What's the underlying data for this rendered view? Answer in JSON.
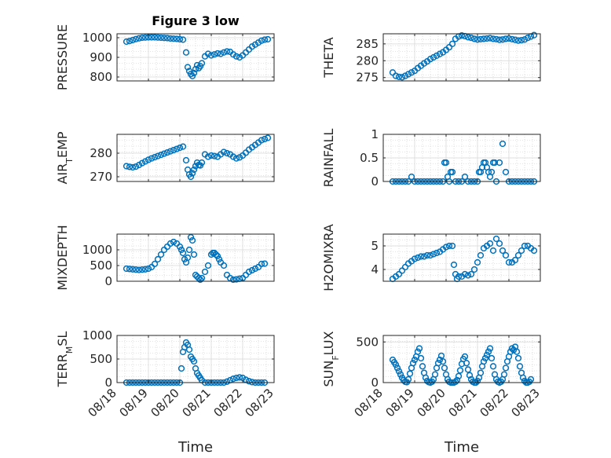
{
  "chart_data": [
    {
      "type": "scatter",
      "title": "Figure 3 low",
      "ylabel": "PRESSURE",
      "xlabel": "",
      "xlim": [
        0,
        5
      ],
      "ylim": [
        780,
        1020
      ],
      "yticks": [
        800,
        900,
        1000
      ],
      "yticklabels": [
        "800",
        "900",
        "1000"
      ],
      "x": [
        0.3,
        0.4,
        0.5,
        0.6,
        0.7,
        0.8,
        0.9,
        1.0,
        1.1,
        1.2,
        1.3,
        1.4,
        1.5,
        1.6,
        1.7,
        1.8,
        1.9,
        2.0,
        2.1,
        2.2,
        2.25,
        2.3,
        2.35,
        2.4,
        2.45,
        2.5,
        2.55,
        2.6,
        2.65,
        2.7,
        2.8,
        2.9,
        3.0,
        3.1,
        3.2,
        3.3,
        3.4,
        3.5,
        3.6,
        3.7,
        3.8,
        3.9,
        4.0,
        4.1,
        4.2,
        4.3,
        4.4,
        4.5,
        4.6,
        4.7,
        4.8
      ],
      "y": [
        980,
        983,
        988,
        993,
        997,
        1000,
        1001,
        1002,
        1002,
        1002,
        1001,
        1000,
        999,
        998,
        996,
        995,
        994,
        992,
        990,
        925,
        850,
        830,
        815,
        805,
        820,
        840,
        860,
        845,
        855,
        870,
        905,
        918,
        910,
        915,
        920,
        918,
        925,
        930,
        928,
        915,
        905,
        900,
        910,
        925,
        940,
        955,
        965,
        975,
        985,
        990,
        992
      ],
      "series_color": "#0072BD"
    },
    {
      "type": "scatter",
      "title": "",
      "ylabel": "THETA",
      "xlabel": "",
      "xlim": [
        0,
        5
      ],
      "ylim": [
        274,
        288
      ],
      "yticks": [
        275,
        280,
        285
      ],
      "yticklabels": [
        "275",
        "280",
        "285"
      ],
      "x": [
        0.3,
        0.4,
        0.5,
        0.6,
        0.7,
        0.8,
        0.9,
        1.0,
        1.1,
        1.2,
        1.3,
        1.4,
        1.5,
        1.6,
        1.7,
        1.8,
        1.9,
        2.0,
        2.1,
        2.2,
        2.3,
        2.4,
        2.5,
        2.6,
        2.7,
        2.8,
        2.9,
        3.0,
        3.1,
        3.2,
        3.3,
        3.4,
        3.5,
        3.6,
        3.7,
        3.8,
        3.9,
        4.0,
        4.1,
        4.2,
        4.3,
        4.4,
        4.5,
        4.6,
        4.7,
        4.8
      ],
      "y": [
        276.5,
        275.5,
        275.2,
        275.1,
        275.5,
        276,
        276.5,
        277,
        277.8,
        278.5,
        279.2,
        279.8,
        280.5,
        281,
        281.5,
        282,
        282.5,
        283.2,
        284,
        285,
        286.5,
        287.2,
        287.5,
        287.3,
        287,
        286.8,
        286.5,
        286.3,
        286.4,
        286.5,
        286.6,
        286.7,
        286.5,
        286.4,
        286.2,
        286.3,
        286.5,
        286.6,
        286.4,
        286.2,
        286,
        286.1,
        286.3,
        286.8,
        287.2,
        287.6
      ],
      "series_color": "#0072BD"
    },
    {
      "type": "scatter",
      "title": "",
      "ylabel": "AIR_TEMP",
      "xlabel": "",
      "xlim": [
        0,
        5
      ],
      "ylim": [
        268,
        288
      ],
      "yticks": [
        270,
        280
      ],
      "yticklabels": [
        "270",
        "280"
      ],
      "x": [
        0.3,
        0.4,
        0.5,
        0.6,
        0.7,
        0.8,
        0.9,
        1.0,
        1.1,
        1.2,
        1.3,
        1.4,
        1.5,
        1.6,
        1.7,
        1.8,
        1.9,
        2.0,
        2.1,
        2.2,
        2.25,
        2.3,
        2.35,
        2.4,
        2.45,
        2.5,
        2.55,
        2.6,
        2.65,
        2.7,
        2.8,
        2.9,
        3.0,
        3.1,
        3.2,
        3.3,
        3.4,
        3.5,
        3.6,
        3.7,
        3.8,
        3.9,
        4.0,
        4.1,
        4.2,
        4.3,
        4.4,
        4.5,
        4.6,
        4.7,
        4.8
      ],
      "y": [
        274.5,
        274.2,
        274,
        274.3,
        275,
        275.8,
        276.5,
        277.2,
        277.8,
        278.3,
        278.8,
        279.3,
        279.8,
        280.3,
        280.8,
        281.3,
        281.8,
        282.3,
        282.8,
        277,
        273,
        271,
        270,
        271.5,
        273,
        274.5,
        276,
        275,
        274.8,
        276,
        279.5,
        278.5,
        279,
        278.8,
        278.5,
        279.5,
        280.5,
        280,
        279.5,
        278.5,
        277.8,
        278.2,
        279,
        280.2,
        281.5,
        282.5,
        283.5,
        284.5,
        285.5,
        286,
        286.5
      ],
      "series_color": "#0072BD"
    },
    {
      "type": "scatter",
      "title": "",
      "ylabel": "RAINFALL",
      "xlabel": "",
      "xlim": [
        0,
        5
      ],
      "ylim": [
        0,
        1
      ],
      "yticks": [
        0,
        0.5,
        1
      ],
      "yticklabels": [
        "0",
        "0.5",
        "1"
      ],
      "x": [
        0.3,
        0.4,
        0.5,
        0.6,
        0.7,
        0.8,
        0.9,
        1.0,
        1.1,
        1.2,
        1.3,
        1.4,
        1.5,
        1.6,
        1.7,
        1.8,
        1.9,
        1.95,
        2.0,
        2.05,
        2.1,
        2.15,
        2.2,
        2.3,
        2.4,
        2.5,
        2.6,
        2.7,
        2.8,
        2.9,
        3.0,
        3.05,
        3.1,
        3.15,
        3.2,
        3.25,
        3.3,
        3.35,
        3.4,
        3.45,
        3.5,
        3.55,
        3.6,
        3.7,
        3.8,
        3.9,
        4.0,
        4.1,
        4.2,
        4.3,
        4.4,
        4.5,
        4.6,
        4.7,
        4.8
      ],
      "y": [
        0,
        0,
        0,
        0,
        0,
        0,
        0.1,
        0,
        0,
        0,
        0,
        0,
        0,
        0,
        0,
        0,
        0,
        0.4,
        0.4,
        0.1,
        0,
        0.2,
        0.2,
        0,
        0,
        0,
        0.1,
        0,
        0,
        0,
        0,
        0.2,
        0.2,
        0.3,
        0.4,
        0.4,
        0.3,
        0.2,
        0.1,
        0.2,
        0.4,
        0.4,
        0,
        0.4,
        0.8,
        0.2,
        0,
        0,
        0,
        0,
        0,
        0,
        0,
        0,
        0
      ],
      "series_color": "#0072BD"
    },
    {
      "type": "scatter",
      "title": "",
      "ylabel": "MIXDEPTH",
      "xlabel": "",
      "xlim": [
        0,
        5
      ],
      "ylim": [
        0,
        1500
      ],
      "yticks": [
        0,
        500,
        1000
      ],
      "yticklabels": [
        "0",
        "500",
        "1000"
      ],
      "x": [
        0.3,
        0.4,
        0.5,
        0.6,
        0.7,
        0.8,
        0.9,
        1.0,
        1.1,
        1.2,
        1.3,
        1.4,
        1.5,
        1.6,
        1.7,
        1.8,
        1.9,
        2.0,
        2.05,
        2.1,
        2.15,
        2.2,
        2.25,
        2.3,
        2.35,
        2.4,
        2.45,
        2.5,
        2.55,
        2.6,
        2.65,
        2.7,
        2.8,
        2.9,
        3.0,
        3.05,
        3.1,
        3.15,
        3.2,
        3.25,
        3.3,
        3.4,
        3.5,
        3.6,
        3.7,
        3.8,
        3.9,
        4.0,
        4.1,
        4.2,
        4.3,
        4.4,
        4.5,
        4.6,
        4.7
      ],
      "y": [
        400,
        390,
        380,
        370,
        360,
        370,
        380,
        400,
        450,
        550,
        700,
        850,
        1000,
        1100,
        1200,
        1250,
        1200,
        1100,
        1000,
        900,
        700,
        600,
        750,
        1000,
        1400,
        1300,
        850,
        200,
        150,
        100,
        50,
        100,
        300,
        500,
        850,
        900,
        900,
        850,
        800,
        700,
        600,
        500,
        200,
        100,
        50,
        60,
        80,
        100,
        200,
        300,
        350,
        400,
        450,
        550,
        560
      ],
      "series_color": "#0072BD"
    },
    {
      "type": "scatter",
      "title": "",
      "ylabel": "H2OMIXRA",
      "xlabel": "",
      "xlim": [
        0,
        5
      ],
      "ylim": [
        3.5,
        5.5
      ],
      "yticks": [
        4,
        5
      ],
      "yticklabels": [
        "4",
        "5"
      ],
      "x": [
        0.3,
        0.4,
        0.5,
        0.6,
        0.7,
        0.8,
        0.9,
        1.0,
        1.1,
        1.2,
        1.3,
        1.4,
        1.5,
        1.6,
        1.7,
        1.8,
        1.9,
        2.0,
        2.1,
        2.2,
        2.25,
        2.3,
        2.35,
        2.4,
        2.5,
        2.6,
        2.7,
        2.8,
        2.9,
        3.0,
        3.1,
        3.2,
        3.3,
        3.4,
        3.5,
        3.6,
        3.7,
        3.8,
        3.9,
        4.0,
        4.1,
        4.2,
        4.3,
        4.4,
        4.5,
        4.6,
        4.7,
        4.8
      ],
      "y": [
        3.6,
        3.7,
        3.8,
        3.95,
        4.1,
        4.25,
        4.35,
        4.45,
        4.5,
        4.55,
        4.55,
        4.6,
        4.6,
        4.65,
        4.7,
        4.75,
        4.85,
        4.95,
        5,
        5,
        4.2,
        3.8,
        3.6,
        3.7,
        3.7,
        3.8,
        3.75,
        3.8,
        4,
        4.3,
        4.6,
        4.9,
        5,
        5.1,
        4.8,
        5.3,
        5.1,
        4.8,
        4.6,
        4.3,
        4.3,
        4.4,
        4.6,
        4.8,
        5,
        5,
        4.9,
        4.8
      ],
      "series_color": "#0072BD"
    },
    {
      "type": "scatter",
      "title": "",
      "ylabel": "TERR_MSL",
      "xlabel": "Time",
      "xlim": [
        0,
        5
      ],
      "ylim": [
        0,
        1000
      ],
      "yticks": [
        0,
        500,
        1000
      ],
      "yticklabels": [
        "0",
        "500",
        "1000"
      ],
      "xticks": [
        0,
        1,
        2,
        3,
        4,
        5
      ],
      "xticklabels": [
        "08/18",
        "08/19",
        "08/20",
        "08/21",
        "08/22",
        "08/23"
      ],
      "x": [
        0.3,
        0.4,
        0.5,
        0.6,
        0.7,
        0.8,
        0.9,
        1.0,
        1.1,
        1.2,
        1.3,
        1.4,
        1.5,
        1.6,
        1.7,
        1.8,
        1.9,
        2.0,
        2.05,
        2.1,
        2.15,
        2.2,
        2.25,
        2.3,
        2.35,
        2.4,
        2.45,
        2.5,
        2.55,
        2.6,
        2.65,
        2.7,
        2.8,
        2.9,
        3.0,
        3.1,
        3.2,
        3.3,
        3.4,
        3.5,
        3.6,
        3.7,
        3.8,
        3.9,
        4.0,
        4.1,
        4.2,
        4.3,
        4.4,
        4.5,
        4.6,
        4.7
      ],
      "y": [
        0,
        0,
        0,
        0,
        0,
        0,
        0,
        0,
        0,
        0,
        0,
        0,
        0,
        0,
        0,
        0,
        0,
        0,
        300,
        650,
        750,
        850,
        800,
        700,
        550,
        500,
        450,
        300,
        200,
        150,
        100,
        50,
        0,
        0,
        0,
        0,
        0,
        0,
        0,
        20,
        50,
        80,
        100,
        110,
        100,
        60,
        30,
        10,
        0,
        0,
        0,
        0
      ],
      "series_color": "#0072BD"
    },
    {
      "type": "scatter",
      "title": "",
      "ylabel": "SUN_FLUX",
      "xlabel": "Time",
      "xlim": [
        0,
        5
      ],
      "ylim": [
        0,
        580
      ],
      "yticks": [
        0,
        500
      ],
      "yticklabels": [
        "0",
        "500"
      ],
      "xticks": [
        0,
        1,
        2,
        3,
        4,
        5
      ],
      "xticklabels": [
        "08/18",
        "08/19",
        "08/20",
        "08/21",
        "08/22",
        "08/23"
      ],
      "x": [
        0.3,
        0.35,
        0.4,
        0.45,
        0.5,
        0.55,
        0.6,
        0.65,
        0.7,
        0.75,
        0.8,
        0.85,
        0.9,
        0.95,
        1.0,
        1.05,
        1.1,
        1.15,
        1.2,
        1.25,
        1.3,
        1.35,
        1.4,
        1.45,
        1.5,
        1.55,
        1.6,
        1.65,
        1.7,
        1.75,
        1.8,
        1.85,
        1.9,
        1.95,
        2.0,
        2.05,
        2.1,
        2.15,
        2.2,
        2.25,
        2.3,
        2.35,
        2.4,
        2.45,
        2.5,
        2.55,
        2.6,
        2.65,
        2.7,
        2.75,
        2.8,
        2.85,
        2.9,
        2.95,
        3.0,
        3.05,
        3.1,
        3.15,
        3.2,
        3.25,
        3.3,
        3.35,
        3.4,
        3.45,
        3.5,
        3.55,
        3.6,
        3.65,
        3.7,
        3.75,
        3.8,
        3.85,
        3.9,
        3.95,
        4.0,
        4.05,
        4.1,
        4.15,
        4.2,
        4.25,
        4.3,
        4.35,
        4.4,
        4.45,
        4.5,
        4.55,
        4.6,
        4.65,
        4.7
      ],
      "y": [
        280,
        250,
        220,
        180,
        140,
        100,
        60,
        30,
        10,
        5,
        40,
        110,
        180,
        240,
        280,
        320,
        380,
        420,
        300,
        200,
        120,
        60,
        20,
        5,
        0,
        10,
        40,
        100,
        180,
        240,
        280,
        330,
        260,
        180,
        100,
        40,
        10,
        0,
        0,
        0,
        10,
        30,
        80,
        150,
        230,
        290,
        320,
        240,
        160,
        90,
        40,
        10,
        0,
        0,
        20,
        60,
        120,
        200,
        260,
        300,
        340,
        380,
        420,
        300,
        200,
        100,
        40,
        10,
        0,
        10,
        40,
        100,
        180,
        260,
        320,
        380,
        420,
        400,
        440,
        380,
        300,
        200,
        120,
        60,
        20,
        0,
        0,
        10,
        40
      ],
      "series_color": "#0072BD"
    }
  ]
}
